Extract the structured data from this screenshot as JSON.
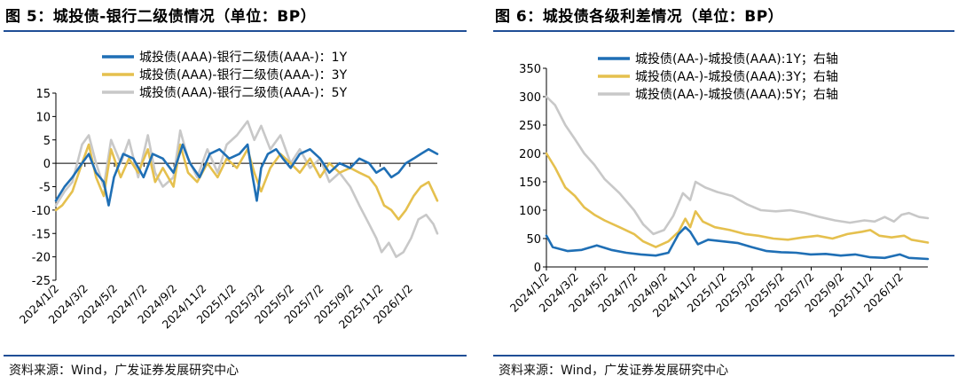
{
  "chart_data": [
    {
      "type": "line",
      "title": "图 5：城投债-银行二级债情况（单位：BP）",
      "xlabel": "",
      "ylabel": "",
      "ylim": [
        -25,
        15
      ],
      "yticks": [
        "15",
        "10",
        "5",
        "0",
        "-5",
        "-10",
        "-15",
        "-20",
        "-25"
      ],
      "x_range": [
        "2024/1/2",
        "2026/2/28"
      ],
      "xtick_labels": [
        "2024/1/2",
        "2024/3/2",
        "2024/5/2",
        "2024/7/2",
        "2024/9/2",
        "2024/11/2",
        "2025/1/2",
        "2025/3/2",
        "2025/5/2",
        "2025/7/2",
        "2025/9/2",
        "2025/11/2",
        "2026/1/2"
      ],
      "grid": false,
      "legend_position": "top",
      "series": [
        {
          "name": "城投债(AAA)-银行二级债(AAA-)：1Y",
          "color": "#1f6fb5",
          "points": [
            [
              "2024/1/2",
              -8
            ],
            [
              "2024/1/20",
              -5
            ],
            [
              "2024/2/5",
              -3
            ],
            [
              "2024/2/25",
              0
            ],
            [
              "2024/3/10",
              2
            ],
            [
              "2024/3/25",
              -2
            ],
            [
              "2024/4/10",
              -4
            ],
            [
              "2024/4/20",
              -9
            ],
            [
              "2024/5/1",
              -3
            ],
            [
              "2024/5/20",
              2
            ],
            [
              "2024/6/10",
              1
            ],
            [
              "2024/7/1",
              -3
            ],
            [
              "2024/7/20",
              2
            ],
            [
              "2024/8/10",
              1
            ],
            [
              "2024/9/1",
              -2
            ],
            [
              "2024/9/20",
              4
            ],
            [
              "2024/10/5",
              0
            ],
            [
              "2024/10/25",
              -3
            ],
            [
              "2024/11/15",
              2
            ],
            [
              "2024/12/5",
              3
            ],
            [
              "2024/12/25",
              1
            ],
            [
              "2025/1/15",
              2
            ],
            [
              "2025/2/1",
              4
            ],
            [
              "2025/2/10",
              -2
            ],
            [
              "2025/2/20",
              -8
            ],
            [
              "2025/3/1",
              -1
            ],
            [
              "2025/3/15",
              2
            ],
            [
              "2025/4/1",
              3
            ],
            [
              "2025/4/15",
              1
            ],
            [
              "2025/5/1",
              -1
            ],
            [
              "2025/5/20",
              2
            ],
            [
              "2025/6/10",
              3
            ],
            [
              "2025/7/1",
              1
            ],
            [
              "2025/7/20",
              -2
            ],
            [
              "2025/8/10",
              0
            ],
            [
              "2025/9/1",
              -1
            ],
            [
              "2025/9/20",
              1
            ],
            [
              "2025/10/10",
              0
            ],
            [
              "2025/10/25",
              -2
            ],
            [
              "2025/11/10",
              -1
            ],
            [
              "2025/11/25",
              -3
            ],
            [
              "2025/12/10",
              -2
            ],
            [
              "2025/12/25",
              0
            ],
            [
              "2026/1/10",
              1
            ],
            [
              "2026/1/25",
              2
            ],
            [
              "2026/2/10",
              3
            ],
            [
              "2026/2/28",
              2
            ]
          ]
        },
        {
          "name": "城投债(AAA)-银行二级债(AAA-)：3Y",
          "color": "#e5c04e",
          "points": [
            [
              "2024/1/2",
              -10
            ],
            [
              "2024/1/15",
              -9
            ],
            [
              "2024/2/5",
              -6
            ],
            [
              "2024/2/25",
              0
            ],
            [
              "2024/3/10",
              4
            ],
            [
              "2024/3/25",
              -3
            ],
            [
              "2024/4/10",
              -7
            ],
            [
              "2024/4/25",
              3
            ],
            [
              "2024/5/15",
              -3
            ],
            [
              "2024/6/1",
              1
            ],
            [
              "2024/6/20",
              -2
            ],
            [
              "2024/7/10",
              3
            ],
            [
              "2024/7/25",
              -4
            ],
            [
              "2024/8/10",
              -1
            ],
            [
              "2024/9/1",
              -5
            ],
            [
              "2024/9/15",
              4
            ],
            [
              "2024/10/1",
              -2
            ],
            [
              "2024/10/20",
              -4
            ],
            [
              "2024/11/10",
              0
            ],
            [
              "2024/12/1",
              -3
            ],
            [
              "2024/12/20",
              1
            ],
            [
              "2025/1/10",
              -1
            ],
            [
              "2025/2/1",
              3
            ],
            [
              "2025/2/15",
              -2
            ],
            [
              "2025/3/1",
              -6
            ],
            [
              "2025/3/20",
              -1
            ],
            [
              "2025/4/10",
              2
            ],
            [
              "2025/5/1",
              0
            ],
            [
              "2025/5/20",
              -2
            ],
            [
              "2025/6/10",
              1
            ],
            [
              "2025/7/1",
              -3
            ],
            [
              "2025/7/20",
              0
            ],
            [
              "2025/8/10",
              -2
            ],
            [
              "2025/9/1",
              -1
            ],
            [
              "2025/9/20",
              -2
            ],
            [
              "2025/10/10",
              -3
            ],
            [
              "2025/10/25",
              -5
            ],
            [
              "2025/11/10",
              -9
            ],
            [
              "2025/11/25",
              -10
            ],
            [
              "2025/12/10",
              -12
            ],
            [
              "2025/12/25",
              -10
            ],
            [
              "2026/1/10",
              -7
            ],
            [
              "2026/1/25",
              -5
            ],
            [
              "2026/2/10",
              -4
            ],
            [
              "2026/2/28",
              -8
            ]
          ]
        },
        {
          "name": "城投债(AAA)-银行二级债(AAA-)：5Y",
          "color": "#c8c8c8",
          "points": [
            [
              "2024/1/2",
              -9
            ],
            [
              "2024/1/20",
              -6
            ],
            [
              "2024/2/5",
              -4
            ],
            [
              "2024/2/25",
              4
            ],
            [
              "2024/3/10",
              6
            ],
            [
              "2024/3/25",
              0
            ],
            [
              "2024/4/10",
              -5
            ],
            [
              "2024/4/25",
              5
            ],
            [
              "2024/5/15",
              0
            ],
            [
              "2024/6/1",
              5
            ],
            [
              "2024/6/20",
              -3
            ],
            [
              "2024/7/10",
              6
            ],
            [
              "2024/7/25",
              -2
            ],
            [
              "2024/8/10",
              -5
            ],
            [
              "2024/9/1",
              -3
            ],
            [
              "2024/9/15",
              7
            ],
            [
              "2024/10/1",
              1
            ],
            [
              "2024/10/20",
              -3
            ],
            [
              "2024/11/10",
              3
            ],
            [
              "2024/12/1",
              -2
            ],
            [
              "2024/12/20",
              4
            ],
            [
              "2025/1/10",
              6
            ],
            [
              "2025/2/1",
              9
            ],
            [
              "2025/2/15",
              5
            ],
            [
              "2025/3/1",
              8
            ],
            [
              "2025/3/20",
              3
            ],
            [
              "2025/4/10",
              6
            ],
            [
              "2025/5/1",
              0
            ],
            [
              "2025/5/20",
              3
            ],
            [
              "2025/6/10",
              -1
            ],
            [
              "2025/7/1",
              1
            ],
            [
              "2025/7/20",
              -4
            ],
            [
              "2025/8/10",
              -2
            ],
            [
              "2025/9/1",
              -5
            ],
            [
              "2025/9/20",
              -9
            ],
            [
              "2025/10/10",
              -13
            ],
            [
              "2025/10/25",
              -16
            ],
            [
              "2025/11/5",
              -19
            ],
            [
              "2025/11/20",
              -17
            ],
            [
              "2025/12/5",
              -20
            ],
            [
              "2025/12/20",
              -19
            ],
            [
              "2026/1/5",
              -16
            ],
            [
              "2026/1/20",
              -12
            ],
            [
              "2026/2/5",
              -11
            ],
            [
              "2026/2/20",
              -13
            ],
            [
              "2026/2/28",
              -15
            ]
          ]
        }
      ]
    },
    {
      "type": "line",
      "title": "图 6：城投债各级利差情况（单位：BP）",
      "xlabel": "",
      "ylabel": "",
      "ylim": [
        0,
        350
      ],
      "yticks": [
        "350",
        "300",
        "250",
        "200",
        "150",
        "100",
        "50",
        "0"
      ],
      "x_range": [
        "2024/1/2",
        "2026/2/28"
      ],
      "xtick_labels": [
        "2024/1/2",
        "2024/3/2",
        "2024/5/2",
        "2024/7/2",
        "2024/9/2",
        "2024/11/2",
        "2025/1/2",
        "2025/3/2",
        "2025/5/2",
        "2025/7/2",
        "2025/9/2",
        "2025/11/2",
        "2026/1/2"
      ],
      "grid": false,
      "legend_position": "top",
      "series": [
        {
          "name": "城投债(AA-)-城投债(AAA):1Y；右轴",
          "color": "#1f6fb5",
          "points": [
            [
              "2024/1/2",
              55
            ],
            [
              "2024/1/15",
              35
            ],
            [
              "2024/2/15",
              28
            ],
            [
              "2024/3/15",
              30
            ],
            [
              "2024/4/15",
              38
            ],
            [
              "2024/5/15",
              30
            ],
            [
              "2024/6/15",
              25
            ],
            [
              "2024/7/15",
              22
            ],
            [
              "2024/8/15",
              20
            ],
            [
              "2024/9/10",
              25
            ],
            [
              "2024/10/1",
              58
            ],
            [
              "2024/10/15",
              70
            ],
            [
              "2024/10/25",
              62
            ],
            [
              "2024/11/10",
              40
            ],
            [
              "2024/12/1",
              48
            ],
            [
              "2025/1/1",
              45
            ],
            [
              "2025/2/1",
              42
            ],
            [
              "2025/3/1",
              35
            ],
            [
              "2025/4/1",
              28
            ],
            [
              "2025/5/1",
              26
            ],
            [
              "2025/6/1",
              25
            ],
            [
              "2025/7/1",
              22
            ],
            [
              "2025/8/1",
              23
            ],
            [
              "2025/9/1",
              20
            ],
            [
              "2025/10/1",
              22
            ],
            [
              "2025/11/1",
              17
            ],
            [
              "2025/12/1",
              16
            ],
            [
              "2026/1/1",
              22
            ],
            [
              "2026/1/20",
              16
            ],
            [
              "2026/2/28",
              14
            ]
          ]
        },
        {
          "name": "城投债(AA-)-城投债(AAA):3Y；右轴",
          "color": "#e5c04e",
          "points": [
            [
              "2024/1/2",
              200
            ],
            [
              "2024/1/20",
              175
            ],
            [
              "2024/2/10",
              140
            ],
            [
              "2024/3/1",
              125
            ],
            [
              "2024/3/20",
              105
            ],
            [
              "2024/4/10",
              92
            ],
            [
              "2024/5/1",
              82
            ],
            [
              "2024/6/1",
              70
            ],
            [
              "2024/7/1",
              58
            ],
            [
              "2024/7/20",
              45
            ],
            [
              "2024/8/15",
              35
            ],
            [
              "2024/9/10",
              45
            ],
            [
              "2024/10/1",
              62
            ],
            [
              "2024/10/15",
              85
            ],
            [
              "2024/10/25",
              70
            ],
            [
              "2024/11/5",
              98
            ],
            [
              "2024/11/20",
              80
            ],
            [
              "2024/12/15",
              70
            ],
            [
              "2025/1/15",
              65
            ],
            [
              "2025/2/15",
              58
            ],
            [
              "2025/3/15",
              55
            ],
            [
              "2025/4/15",
              50
            ],
            [
              "2025/5/15",
              48
            ],
            [
              "2025/6/15",
              52
            ],
            [
              "2025/7/15",
              55
            ],
            [
              "2025/8/15",
              50
            ],
            [
              "2025/9/15",
              58
            ],
            [
              "2025/10/15",
              62
            ],
            [
              "2025/11/1",
              65
            ],
            [
              "2025/11/20",
              55
            ],
            [
              "2025/12/15",
              52
            ],
            [
              "2026/1/10",
              55
            ],
            [
              "2026/1/25",
              48
            ],
            [
              "2026/2/28",
              43
            ]
          ]
        },
        {
          "name": "城投债(AA-)-城投债(AAA):5Y；右轴",
          "color": "#c8c8c8",
          "points": [
            [
              "2024/1/2",
              300
            ],
            [
              "2024/1/20",
              285
            ],
            [
              "2024/2/10",
              250
            ],
            [
              "2024/3/1",
              225
            ],
            [
              "2024/3/20",
              200
            ],
            [
              "2024/4/10",
              180
            ],
            [
              "2024/5/1",
              155
            ],
            [
              "2024/6/1",
              130
            ],
            [
              "2024/7/1",
              100
            ],
            [
              "2024/7/20",
              75
            ],
            [
              "2024/8/10",
              58
            ],
            [
              "2024/9/1",
              65
            ],
            [
              "2024/9/20",
              90
            ],
            [
              "2024/10/10",
              130
            ],
            [
              "2024/10/25",
              118
            ],
            [
              "2024/11/5",
              150
            ],
            [
              "2024/11/25",
              140
            ],
            [
              "2024/12/20",
              132
            ],
            [
              "2025/1/20",
              125
            ],
            [
              "2025/2/20",
              110
            ],
            [
              "2025/3/20",
              100
            ],
            [
              "2025/4/20",
              98
            ],
            [
              "2025/5/20",
              100
            ],
            [
              "2025/6/20",
              95
            ],
            [
              "2025/7/20",
              88
            ],
            [
              "2025/8/20",
              82
            ],
            [
              "2025/9/20",
              78
            ],
            [
              "2025/10/20",
              82
            ],
            [
              "2025/11/10",
              80
            ],
            [
              "2025/12/1",
              88
            ],
            [
              "2025/12/20",
              80
            ],
            [
              "2026/1/5",
              92
            ],
            [
              "2026/1/20",
              95
            ],
            [
              "2026/2/10",
              88
            ],
            [
              "2026/2/28",
              86
            ]
          ]
        }
      ]
    }
  ],
  "left": {
    "title": "图 5：城投债-银行二级债情况（单位：BP）",
    "source": "资料来源：Wind，广发证券发展研究中心"
  },
  "right": {
    "title": "图 6：城投债各级利差情况（单位：BP）",
    "source": "资料来源：Wind，广发证券发展研究中心"
  }
}
